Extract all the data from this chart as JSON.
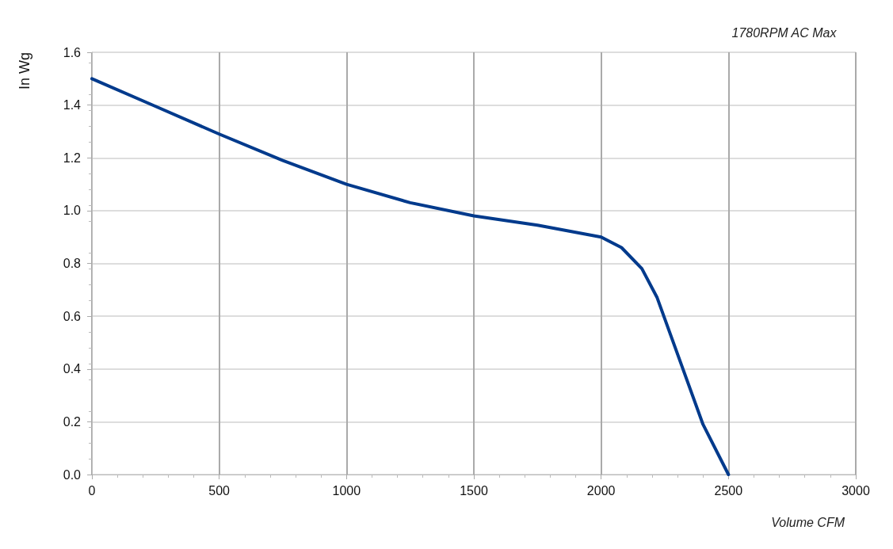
{
  "chart_data": {
    "type": "line",
    "title": "1780RPM AC Max",
    "xlabel": "Volume CFM",
    "ylabel": "In Wg",
    "x": [
      0,
      250,
      500,
      750,
      1000,
      1250,
      1500,
      1750,
      2000,
      2080,
      2160,
      2220,
      2400,
      2500
    ],
    "series": [
      {
        "color": "#003a8c",
        "values": [
          1.5,
          1.395,
          1.29,
          1.19,
          1.1,
          1.03,
          0.98,
          0.945,
          0.9,
          0.86,
          0.78,
          0.67,
          0.19,
          0
        ]
      }
    ],
    "xlim": [
      0,
      3000
    ],
    "xticks": [
      0,
      500,
      1000,
      1500,
      2000,
      2500,
      3000
    ],
    "ylim": [
      0,
      1.6
    ],
    "yticks": [
      {
        "value": 0,
        "label": "0.0"
      },
      0.2,
      0.4,
      0.6,
      0.8,
      {
        "value": 1,
        "label": "1.0"
      },
      1.2,
      1.4,
      1.6
    ],
    "grid": true,
    "marker": "none",
    "line_style": "solid"
  }
}
